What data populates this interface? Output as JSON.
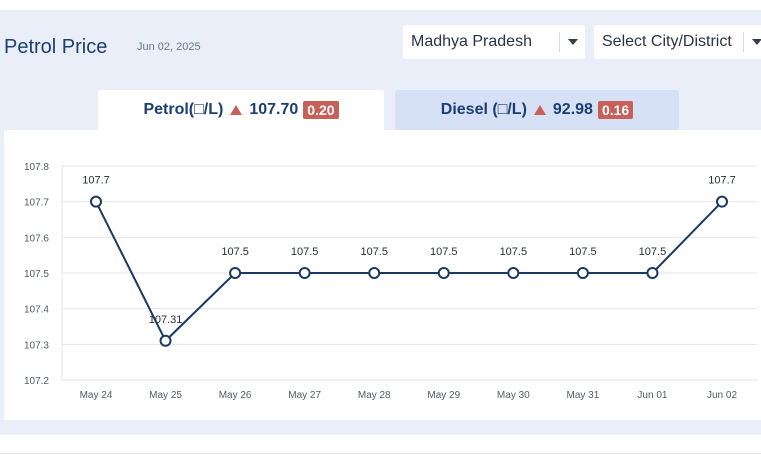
{
  "header": {
    "title": "Petrol Price",
    "date": "Jun 02, 2025"
  },
  "filters": {
    "state": "Madhya Pradesh",
    "city": "Select City/District"
  },
  "tabs": {
    "petrol": {
      "label": "Petrol(□/L)",
      "price": "107.70",
      "change": "0.20",
      "active": true
    },
    "diesel": {
      "label": "Diesel (□/L)",
      "price": "92.98",
      "change": "0.16",
      "active": false
    }
  },
  "colors": {
    "line": "#1b3a63",
    "badge": "#c8605a",
    "title": "#1b3f73"
  },
  "chart_data": {
    "type": "line",
    "title": "",
    "xlabel": "",
    "ylabel": "",
    "categories": [
      "May 24",
      "May 25",
      "May 26",
      "May 27",
      "May 28",
      "May 29",
      "May 30",
      "May 31",
      "Jun 01",
      "Jun 02"
    ],
    "values": [
      107.7,
      107.31,
      107.5,
      107.5,
      107.5,
      107.5,
      107.5,
      107.5,
      107.5,
      107.7
    ],
    "data_labels": [
      "107.7",
      "107.31",
      "107.5",
      "107.5",
      "107.5",
      "107.5",
      "107.5",
      "107.5",
      "107.5",
      "107.7"
    ],
    "yticks": [
      "107.8",
      "107.7",
      "107.6",
      "107.5",
      "107.4",
      "107.3",
      "107.2"
    ],
    "ylim": [
      107.2,
      107.8
    ],
    "grid": true
  }
}
